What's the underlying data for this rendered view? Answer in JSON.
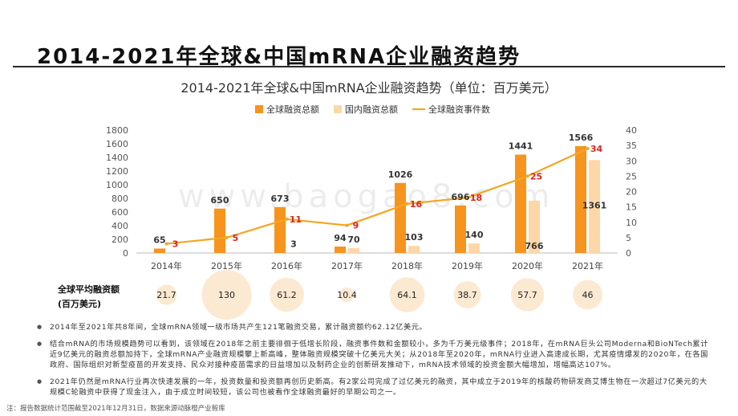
{
  "page": {
    "title": "2014-2021年全球&中国mRNA企业融资趋势",
    "watermark": "www.baogao8.com",
    "footnote": "注：报告数据统计范围截至2021年12月31日，数据来源动脉橙产业智库"
  },
  "chart_data": {
    "type": "bar",
    "title": "2014-2021年全球&中国mRNA企业融资趋势（单位：百万美元）",
    "categories": [
      "2014年",
      "2015年",
      "2016年",
      "2017年",
      "2018年",
      "2019年",
      "2020年",
      "2021年"
    ],
    "series": [
      {
        "name": "全球融资总额",
        "type": "bar",
        "axis": "left",
        "color": "#F7941D",
        "values": [
          65,
          650,
          673,
          94,
          1026,
          696,
          1441,
          1566
        ]
      },
      {
        "name": "国内融资总额",
        "type": "bar",
        "axis": "left",
        "color": "#FDD7A8",
        "values": [
          null,
          null,
          3,
          70,
          103,
          140,
          766,
          1361
        ]
      },
      {
        "name": "全球融资事件数",
        "type": "line",
        "axis": "right",
        "color": "#F5A623",
        "values": [
          3,
          5,
          11,
          9,
          16,
          18,
          25,
          34
        ]
      }
    ],
    "ylim_left": [
      0,
      1800
    ],
    "yticks_left": [
      0,
      200,
      400,
      600,
      800,
      1000,
      1200,
      1400,
      1600,
      1800
    ],
    "ylim_right": [
      0,
      40
    ],
    "yticks_right": [
      0,
      5,
      10,
      15,
      20,
      25,
      30,
      35,
      40
    ],
    "legend_position": "top-center",
    "grid": false,
    "bubbles": {
      "label_line1": "全球平均融资额",
      "label_line2": "(百万美元)",
      "values": [
        21.7,
        130,
        61.2,
        10.4,
        64.1,
        38.7,
        57.7,
        46
      ],
      "color": "#FCE9D2"
    }
  },
  "notes": [
    "2014年至2021年共8年间，全球mRNA领域一级市场共产生121笔融资交易，累计融资额约62.12亿美元。",
    "结合mRNA的市场规模趋势可以看到，该领域在2018年之前主要徘徊于低增长阶段，融资事件数和金额较小，多为千万美元级事件；2018年，在mRNA巨头公司Moderna和BioNTech累计近9亿美元的融资总额加持下，全球mRNA产业融资规模攀上新高峰，整体融资规模突破十亿美元大关；从2018年至2020年，mRNA行业进入高速成长期，尤其疫情爆发的2020年，在各国政府、国际组织对新型疫苗的开发支持、民众对接种疫苗需求的日益增加以及制药企业的创新研发推动下，mRNA技术领域的投资金额大幅增加，增幅高达107%。",
    "2021年仍然是mRNA行业再次快速发展的一年，投资数量和投资额再创历史新高。有2家公司完成了过亿美元的融资，其中成立于2019年的核酸药物研发商艾博生物在一次超过7亿美元的大规模C轮融资中获得了现金注入，由于成立时间较短，该公司也被看作全球融资最好的早期公司之一。"
  ]
}
